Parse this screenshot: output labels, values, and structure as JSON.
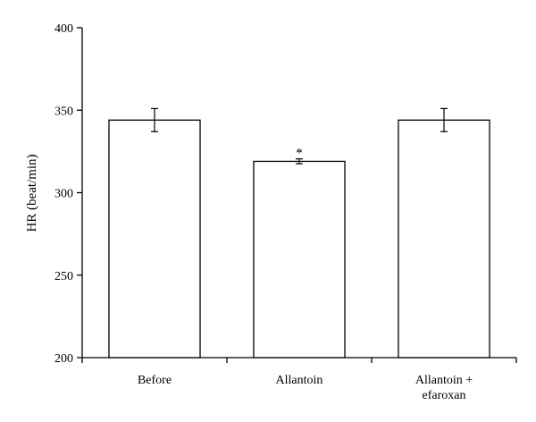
{
  "chart_data": {
    "type": "bar",
    "title": "",
    "xlabel": "",
    "ylabel": "HR (beat/min)",
    "ylim": [
      200,
      400
    ],
    "yticks": [
      200,
      250,
      300,
      350,
      400
    ],
    "categories": [
      [
        "Before"
      ],
      [
        "Allantoin"
      ],
      [
        "Allantoin +",
        "efaroxan"
      ]
    ],
    "values": [
      344,
      319,
      344
    ],
    "errors": [
      7,
      1.5,
      7
    ],
    "annotations": [
      "",
      "*",
      ""
    ],
    "grid": false,
    "legend": false
  }
}
